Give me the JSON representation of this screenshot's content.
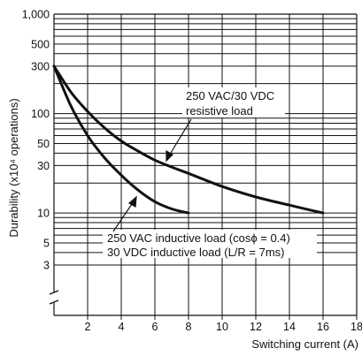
{
  "chart_data": {
    "type": "line",
    "xlabel": "Switching current (A)",
    "ylabel": "Durability (x10⁴ operations)",
    "xlim": [
      0,
      18
    ],
    "ylim": [
      1,
      1000
    ],
    "y_scale": "log",
    "y_axis_break": true,
    "grid": true,
    "x_ticks": [
      "2",
      "4",
      "6",
      "8",
      "10",
      "12",
      "14",
      "16",
      "18"
    ],
    "y_ticks": [
      {
        "value": 1000,
        "label": "1,000"
      },
      {
        "value": 500,
        "label": "500"
      },
      {
        "value": 300,
        "label": "300"
      },
      {
        "value": 100,
        "label": "100"
      },
      {
        "value": 50,
        "label": "50"
      },
      {
        "value": 30,
        "label": "30"
      },
      {
        "value": 10,
        "label": "10"
      },
      {
        "value": 5,
        "label": "5"
      },
      {
        "value": 3,
        "label": "3"
      }
    ],
    "series": [
      {
        "label_lines": [
          "250 VAC/30 VDC",
          "resistive load"
        ],
        "x": [
          0,
          1,
          2,
          3,
          4,
          5,
          6,
          7,
          8,
          10,
          12,
          14,
          16
        ],
        "y": [
          300,
          165,
          105,
          72,
          53,
          42,
          34,
          29,
          25,
          18.5,
          14.5,
          12,
          10
        ]
      },
      {
        "label_lines": [
          "250 VAC inductive load (cosϕ = 0.4)",
          "30 VDC inductive load (L/R = 7ms)"
        ],
        "x": [
          0,
          1,
          2,
          3,
          4,
          5,
          6,
          7,
          8
        ],
        "y": [
          300,
          120,
          60,
          36,
          24,
          17,
          13,
          11,
          10
        ]
      }
    ]
  }
}
